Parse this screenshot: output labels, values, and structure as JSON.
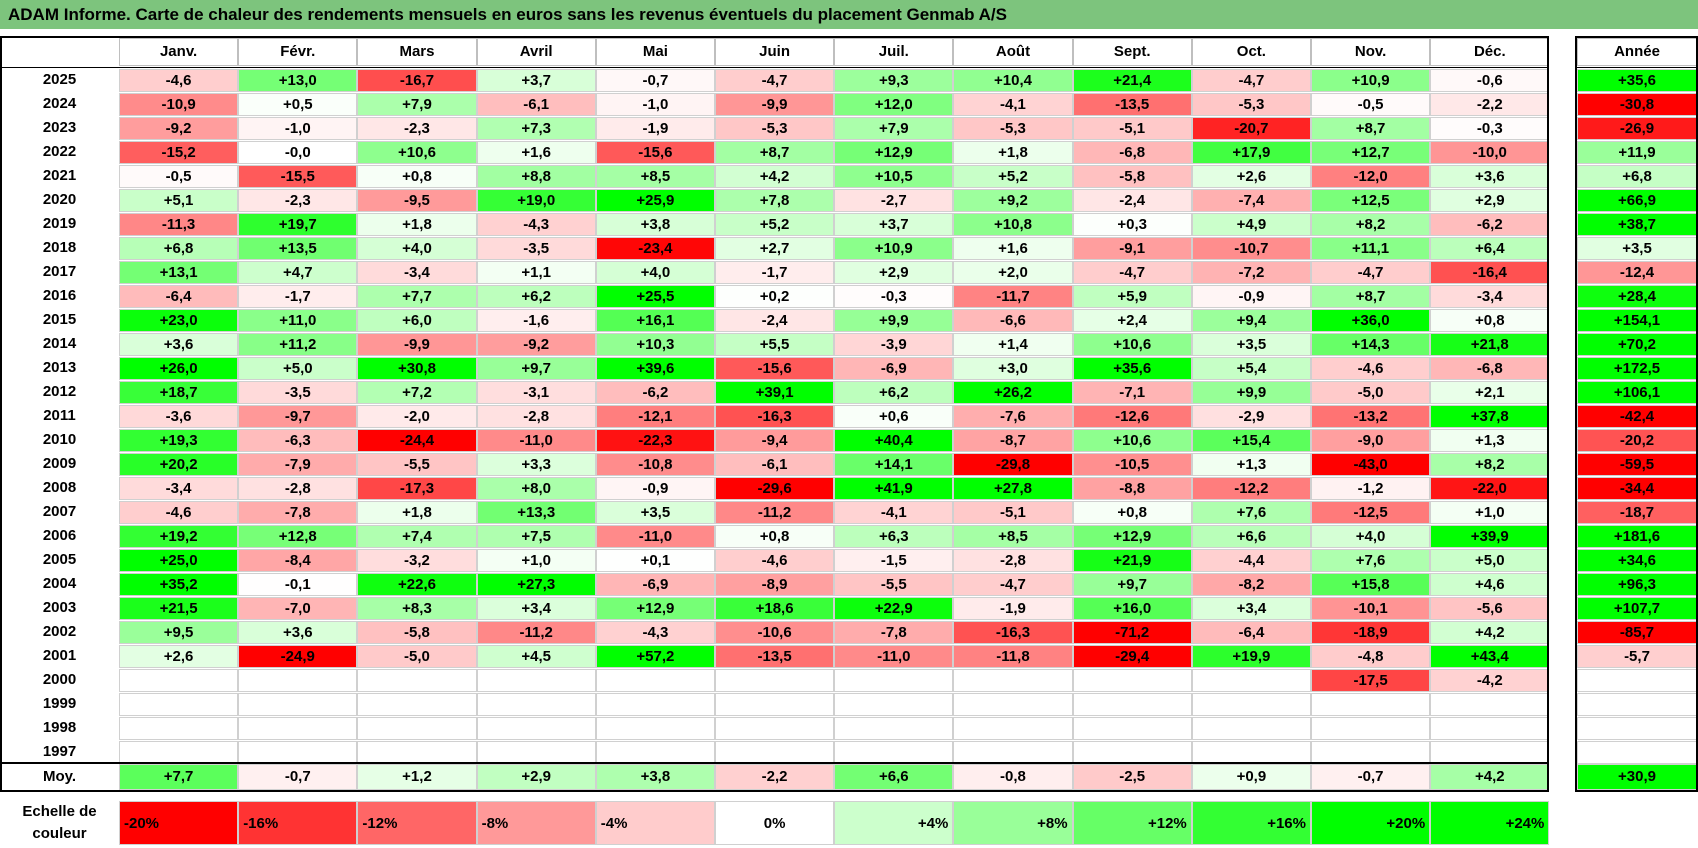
{
  "title": "ADAM Informe. Carte de chaleur des rendements mensuels en euros sans les revenus éventuels du placement Genmab A/S",
  "chart_data": {
    "type": "heatmap",
    "columns": [
      "Janv.",
      "Févr.",
      "Mars",
      "Avril",
      "Mai",
      "Juin",
      "Juil.",
      "Août",
      "Sept.",
      "Oct.",
      "Nov.",
      "Déc."
    ],
    "annual_header": "Année",
    "rows": [
      {
        "year": "2025",
        "values": [
          "-4,6",
          "+13,0",
          "-16,7",
          "+3,7",
          "-0,7",
          "-4,7",
          "+9,3",
          "+10,4",
          "+21,4",
          "-4,7",
          "+10,9",
          "-0,6"
        ],
        "annual": "+35,6"
      },
      {
        "year": "2024",
        "values": [
          "-10,9",
          "+0,5",
          "+7,9",
          "-6,1",
          "-1,0",
          "-9,9",
          "+12,0",
          "-4,1",
          "-13,5",
          "-5,3",
          "-0,5",
          "-2,2"
        ],
        "annual": "-30,8"
      },
      {
        "year": "2023",
        "values": [
          "-9,2",
          "-1,0",
          "-2,3",
          "+7,3",
          "-1,9",
          "-5,3",
          "+7,9",
          "-5,3",
          "-5,1",
          "-20,7",
          "+8,7",
          "-0,3"
        ],
        "annual": "-26,9"
      },
      {
        "year": "2022",
        "values": [
          "-15,2",
          "-0,0",
          "+10,6",
          "+1,6",
          "-15,6",
          "+8,7",
          "+12,9",
          "+1,8",
          "-6,8",
          "+17,9",
          "+12,7",
          "-10,0"
        ],
        "annual": "+11,9"
      },
      {
        "year": "2021",
        "values": [
          "-0,5",
          "-15,5",
          "+0,8",
          "+8,8",
          "+8,5",
          "+4,2",
          "+10,5",
          "+5,2",
          "-5,8",
          "+2,6",
          "-12,0",
          "+3,6"
        ],
        "annual": "+6,8"
      },
      {
        "year": "2020",
        "values": [
          "+5,1",
          "-2,3",
          "-9,5",
          "+19,0",
          "+25,9",
          "+7,8",
          "-2,7",
          "+9,2",
          "-2,4",
          "-7,4",
          "+12,5",
          "+2,9"
        ],
        "annual": "+66,9"
      },
      {
        "year": "2019",
        "values": [
          "-11,3",
          "+19,7",
          "+1,8",
          "-4,3",
          "+3,8",
          "+5,2",
          "+3,7",
          "+10,8",
          "+0,3",
          "+4,9",
          "+8,2",
          "-6,2"
        ],
        "annual": "+38,7"
      },
      {
        "year": "2018",
        "values": [
          "+6,8",
          "+13,5",
          "+4,0",
          "-3,5",
          "-23,4",
          "+2,7",
          "+10,9",
          "+1,6",
          "-9,1",
          "-10,7",
          "+11,1",
          "+6,4"
        ],
        "annual": "+3,5"
      },
      {
        "year": "2017",
        "values": [
          "+13,1",
          "+4,7",
          "-3,4",
          "+1,1",
          "+4,0",
          "-1,7",
          "+2,9",
          "+2,0",
          "-4,7",
          "-7,2",
          "-4,7",
          "-16,4"
        ],
        "annual": "-12,4"
      },
      {
        "year": "2016",
        "values": [
          "-6,4",
          "-1,7",
          "+7,7",
          "+6,2",
          "+25,5",
          "+0,2",
          "-0,3",
          "-11,7",
          "+5,9",
          "-0,9",
          "+8,7",
          "-3,4"
        ],
        "annual": "+28,4"
      },
      {
        "year": "2015",
        "values": [
          "+23,0",
          "+11,0",
          "+6,0",
          "-1,6",
          "+16,1",
          "-2,4",
          "+9,9",
          "-6,6",
          "+2,4",
          "+9,4",
          "+36,0",
          "+0,8"
        ],
        "annual": "+154,1"
      },
      {
        "year": "2014",
        "values": [
          "+3,6",
          "+11,2",
          "-9,9",
          "-9,2",
          "+10,3",
          "+5,5",
          "-3,9",
          "+1,4",
          "+10,6",
          "+3,5",
          "+14,3",
          "+21,8"
        ],
        "annual": "+70,2"
      },
      {
        "year": "2013",
        "values": [
          "+26,0",
          "+5,0",
          "+30,8",
          "+9,7",
          "+39,6",
          "-15,6",
          "-6,9",
          "+3,0",
          "+35,6",
          "+5,4",
          "-4,6",
          "-6,8"
        ],
        "annual": "+172,5"
      },
      {
        "year": "2012",
        "values": [
          "+18,7",
          "-3,5",
          "+7,2",
          "-3,1",
          "-6,2",
          "+39,1",
          "+6,2",
          "+26,2",
          "-7,1",
          "+9,9",
          "-5,0",
          "+2,1"
        ],
        "annual": "+106,1"
      },
      {
        "year": "2011",
        "values": [
          "-3,6",
          "-9,7",
          "-2,0",
          "-2,8",
          "-12,1",
          "-16,3",
          "+0,6",
          "-7,6",
          "-12,6",
          "-2,9",
          "-13,2",
          "+37,8"
        ],
        "annual": "-42,4"
      },
      {
        "year": "2010",
        "values": [
          "+19,3",
          "-6,3",
          "-24,4",
          "-11,0",
          "-22,3",
          "-9,4",
          "+40,4",
          "-8,7",
          "+10,6",
          "+15,4",
          "-9,0",
          "+1,3"
        ],
        "annual": "-20,2"
      },
      {
        "year": "2009",
        "values": [
          "+20,2",
          "-7,9",
          "-5,5",
          "+3,3",
          "-10,8",
          "-6,1",
          "+14,1",
          "-29,8",
          "-10,5",
          "+1,3",
          "-43,0",
          "+8,2"
        ],
        "annual": "-59,5"
      },
      {
        "year": "2008",
        "values": [
          "-3,4",
          "-2,8",
          "-17,3",
          "+8,0",
          "-0,9",
          "-29,6",
          "+41,9",
          "+27,8",
          "-8,8",
          "-12,2",
          "-1,2",
          "-22,0"
        ],
        "annual": "-34,4"
      },
      {
        "year": "2007",
        "values": [
          "-4,6",
          "-7,8",
          "+1,8",
          "+13,3",
          "+3,5",
          "-11,2",
          "-4,1",
          "-5,1",
          "+0,8",
          "+7,6",
          "-12,5",
          "+1,0"
        ],
        "annual": "-18,7"
      },
      {
        "year": "2006",
        "values": [
          "+19,2",
          "+12,8",
          "+7,4",
          "+7,5",
          "-11,0",
          "+0,8",
          "+6,3",
          "+8,5",
          "+12,9",
          "+6,6",
          "+4,0",
          "+39,9"
        ],
        "annual": "+181,6"
      },
      {
        "year": "2005",
        "values": [
          "+25,0",
          "-8,4",
          "-3,2",
          "+1,0",
          "+0,1",
          "-4,6",
          "-1,5",
          "-2,8",
          "+21,9",
          "-4,4",
          "+7,6",
          "+5,0"
        ],
        "annual": "+34,6"
      },
      {
        "year": "2004",
        "values": [
          "+35,2",
          "-0,1",
          "+22,6",
          "+27,3",
          "-6,9",
          "-8,9",
          "-5,5",
          "-4,7",
          "+9,7",
          "-8,2",
          "+15,8",
          "+4,6"
        ],
        "annual": "+96,3"
      },
      {
        "year": "2003",
        "values": [
          "+21,5",
          "-7,0",
          "+8,3",
          "+3,4",
          "+12,9",
          "+18,6",
          "+22,9",
          "-1,9",
          "+16,0",
          "+3,4",
          "-10,1",
          "-5,6"
        ],
        "annual": "+107,7"
      },
      {
        "year": "2002",
        "values": [
          "+9,5",
          "+3,6",
          "-5,8",
          "-11,2",
          "-4,3",
          "-10,6",
          "-7,8",
          "-16,3",
          "-71,2",
          "-6,4",
          "-18,9",
          "+4,2"
        ],
        "annual": "-85,7"
      },
      {
        "year": "2001",
        "values": [
          "+2,6",
          "-24,9",
          "-5,0",
          "+4,5",
          "+57,2",
          "-13,5",
          "-11,0",
          "-11,8",
          "-29,4",
          "+19,9",
          "-4,8",
          "+43,4"
        ],
        "annual": "-5,7"
      },
      {
        "year": "2000",
        "values": [
          "",
          "",
          "",
          "",
          "",
          "",
          "",
          "",
          "",
          "",
          "-17,5",
          "-4,2"
        ],
        "annual": ""
      },
      {
        "year": "1999",
        "values": [
          "",
          "",
          "",
          "",
          "",
          "",
          "",
          "",
          "",
          "",
          "",
          ""
        ],
        "annual": ""
      },
      {
        "year": "1998",
        "values": [
          "",
          "",
          "",
          "",
          "",
          "",
          "",
          "",
          "",
          "",
          "",
          ""
        ],
        "annual": ""
      },
      {
        "year": "1997",
        "values": [
          "",
          "",
          "",
          "",
          "",
          "",
          "",
          "",
          "",
          "",
          "",
          ""
        ],
        "annual": ""
      }
    ],
    "average": {
      "label": "Moy.",
      "values": [
        "+7,7",
        "-0,7",
        "+1,2",
        "+2,9",
        "+3,8",
        "-2,2",
        "+6,6",
        "-0,8",
        "-2,5",
        "+0,9",
        "-0,7",
        "+4,2"
      ],
      "annual": "+30,9"
    },
    "color_scale": {
      "label_line1": "Echelle de",
      "label_line2": "couleur",
      "steps": [
        "-20%",
        "-16%",
        "-12%",
        "-8%",
        "-4%",
        "0%",
        "+4%",
        "+8%",
        "+12%",
        "+16%",
        "+20%",
        "+24%"
      ],
      "step_values": [
        -20,
        -16,
        -12,
        -8,
        -4,
        0,
        4,
        8,
        12,
        16,
        20,
        24
      ]
    },
    "colors": {
      "negative": "#ff0000",
      "positive": "#00ff00",
      "neutral": "#ffffff",
      "title_bar": "#7dc47d"
    }
  }
}
